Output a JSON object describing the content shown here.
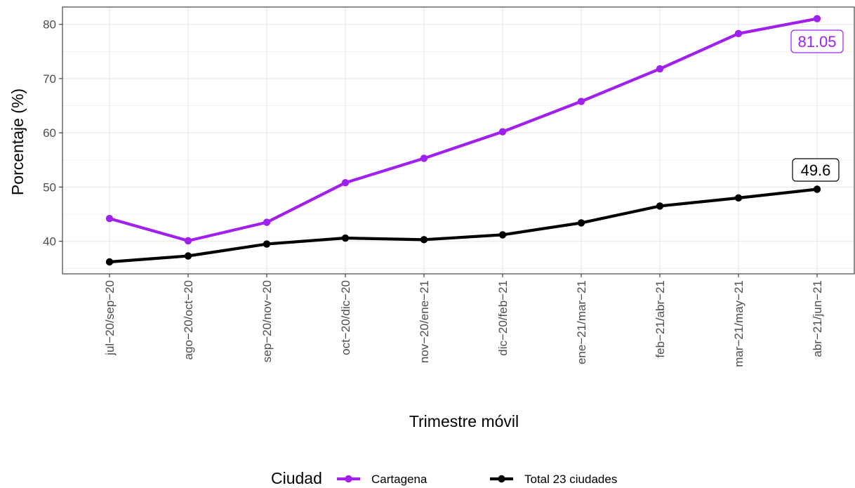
{
  "chart_data": {
    "type": "line",
    "categories": [
      "jul−20/sep−20",
      "ago−20/oct−20",
      "sep−20/nov−20",
      "oct−20/dic−20",
      "nov−20/ene−21",
      "dic−20/feb−21",
      "ene−21/mar−21",
      "feb−21/abr−21",
      "mar−21/may−21",
      "abr−21/jun−21"
    ],
    "series": [
      {
        "name": "Cartagena",
        "color": "#a020f0",
        "values": [
          44.2,
          40.1,
          43.5,
          50.8,
          55.3,
          60.2,
          65.8,
          71.8,
          78.3,
          81.05
        ],
        "end_label": "81.05"
      },
      {
        "name": "Total 23 ciudades",
        "color": "#000000",
        "values": [
          36.2,
          37.3,
          39.5,
          40.6,
          40.3,
          41.2,
          43.4,
          46.5,
          48.0,
          49.6
        ],
        "end_label": "49.6"
      }
    ],
    "xlabel": "Trimestre móvil",
    "ylabel": "Porcentaje (%)",
    "ylim": [
      34,
      83.2
    ],
    "yticks": [
      40,
      50,
      60,
      70,
      80
    ],
    "grid": true,
    "legend": {
      "title": "Ciudad",
      "position": "bottom"
    }
  }
}
